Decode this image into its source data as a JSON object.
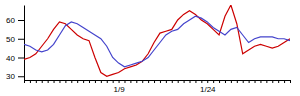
{
  "chart_data": {
    "type": "line",
    "categories": [
      null,
      null,
      null,
      null,
      null,
      null,
      null,
      null,
      null,
      null,
      null,
      null,
      null,
      null,
      null,
      null,
      "1/9",
      null,
      null,
      null,
      null,
      null,
      null,
      null,
      null,
      null,
      null,
      null,
      null,
      null,
      null,
      "1/24",
      null,
      null,
      null,
      null,
      null,
      null,
      null,
      null,
      null,
      null,
      null,
      null,
      null,
      null
    ],
    "series": [
      {
        "color": "#cc0000",
        "values": [
          39,
          40,
          42,
          46,
          50,
          55,
          59,
          58,
          55,
          52,
          50,
          49,
          40,
          32,
          30,
          31,
          32,
          34,
          35,
          36,
          38,
          42,
          48,
          53,
          54,
          55,
          60,
          63,
          65,
          63,
          60,
          58,
          55,
          52,
          62,
          68,
          58,
          42,
          44,
          46,
          47,
          46,
          45,
          46,
          48,
          50
        ]
      },
      {
        "color": "#4444cc",
        "values": [
          47,
          46,
          44,
          43,
          44,
          47,
          52,
          57,
          59,
          58,
          56,
          54,
          52,
          50,
          46,
          40,
          37,
          35,
          36,
          37,
          38,
          40,
          44,
          48,
          52,
          54,
          55,
          58,
          60,
          62,
          61,
          59,
          56,
          54,
          52,
          55,
          56,
          52,
          48,
          50,
          51,
          51,
          51,
          50,
          50,
          49
        ]
      }
    ],
    "ylim": [
      28,
      68
    ],
    "yticks": [
      30,
      40,
      50,
      60
    ],
    "grid": false
  }
}
